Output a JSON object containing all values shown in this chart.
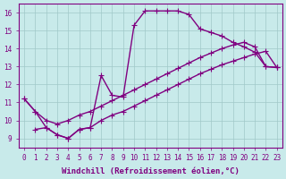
{
  "xlabel": "Windchill (Refroidissement éolien,°C)",
  "background_color": "#c8eaea",
  "line_color": "#800080",
  "grid_color": "#a0c8c8",
  "line1_x": [
    0,
    1,
    2,
    3,
    4,
    5,
    6,
    7,
    8,
    9,
    10,
    11,
    12,
    13,
    14,
    15,
    16,
    17,
    18,
    19,
    20,
    21,
    22,
    23
  ],
  "line1_y": [
    11.2,
    10.5,
    9.6,
    9.2,
    9.0,
    9.5,
    9.6,
    12.5,
    11.4,
    11.3,
    15.3,
    16.1,
    16.1,
    16.1,
    16.1,
    15.9,
    15.1,
    14.9,
    14.7,
    14.35,
    14.1,
    13.8,
    13.0,
    12.95
  ],
  "line2_x": [
    0,
    1,
    2,
    3,
    4,
    5,
    6,
    7,
    8,
    9,
    10,
    11,
    12,
    13,
    14,
    15,
    16,
    17,
    18,
    19,
    20,
    21,
    22,
    23
  ],
  "line2_y": [
    11.2,
    10.5,
    10.0,
    9.8,
    10.0,
    10.3,
    10.5,
    10.8,
    11.1,
    11.4,
    11.7,
    12.0,
    12.3,
    12.6,
    12.9,
    13.2,
    13.5,
    13.75,
    14.0,
    14.2,
    14.35,
    14.1,
    13.0,
    12.95
  ],
  "line3_x": [
    1,
    2,
    3,
    4,
    5,
    6,
    7,
    8,
    9,
    10,
    11,
    12,
    13,
    14,
    15,
    16,
    17,
    18,
    19,
    20,
    21,
    22,
    23
  ],
  "line3_y": [
    9.5,
    9.6,
    9.2,
    9.0,
    9.5,
    9.6,
    10.0,
    10.3,
    10.5,
    10.8,
    11.1,
    11.4,
    11.7,
    12.0,
    12.3,
    12.6,
    12.85,
    13.1,
    13.3,
    13.5,
    13.7,
    13.85,
    12.95
  ],
  "xlim": [
    -0.5,
    23.5
  ],
  "ylim": [
    8.5,
    16.5
  ],
  "xticks": [
    0,
    1,
    2,
    3,
    4,
    5,
    6,
    7,
    8,
    9,
    10,
    11,
    12,
    13,
    14,
    15,
    16,
    17,
    18,
    19,
    20,
    21,
    22,
    23
  ],
  "yticks": [
    9,
    10,
    11,
    12,
    13,
    14,
    15,
    16
  ],
  "marker": "+",
  "markersize": 4,
  "linewidth": 1.0,
  "tick_fontsize": 5.5,
  "label_fontsize": 6.5
}
